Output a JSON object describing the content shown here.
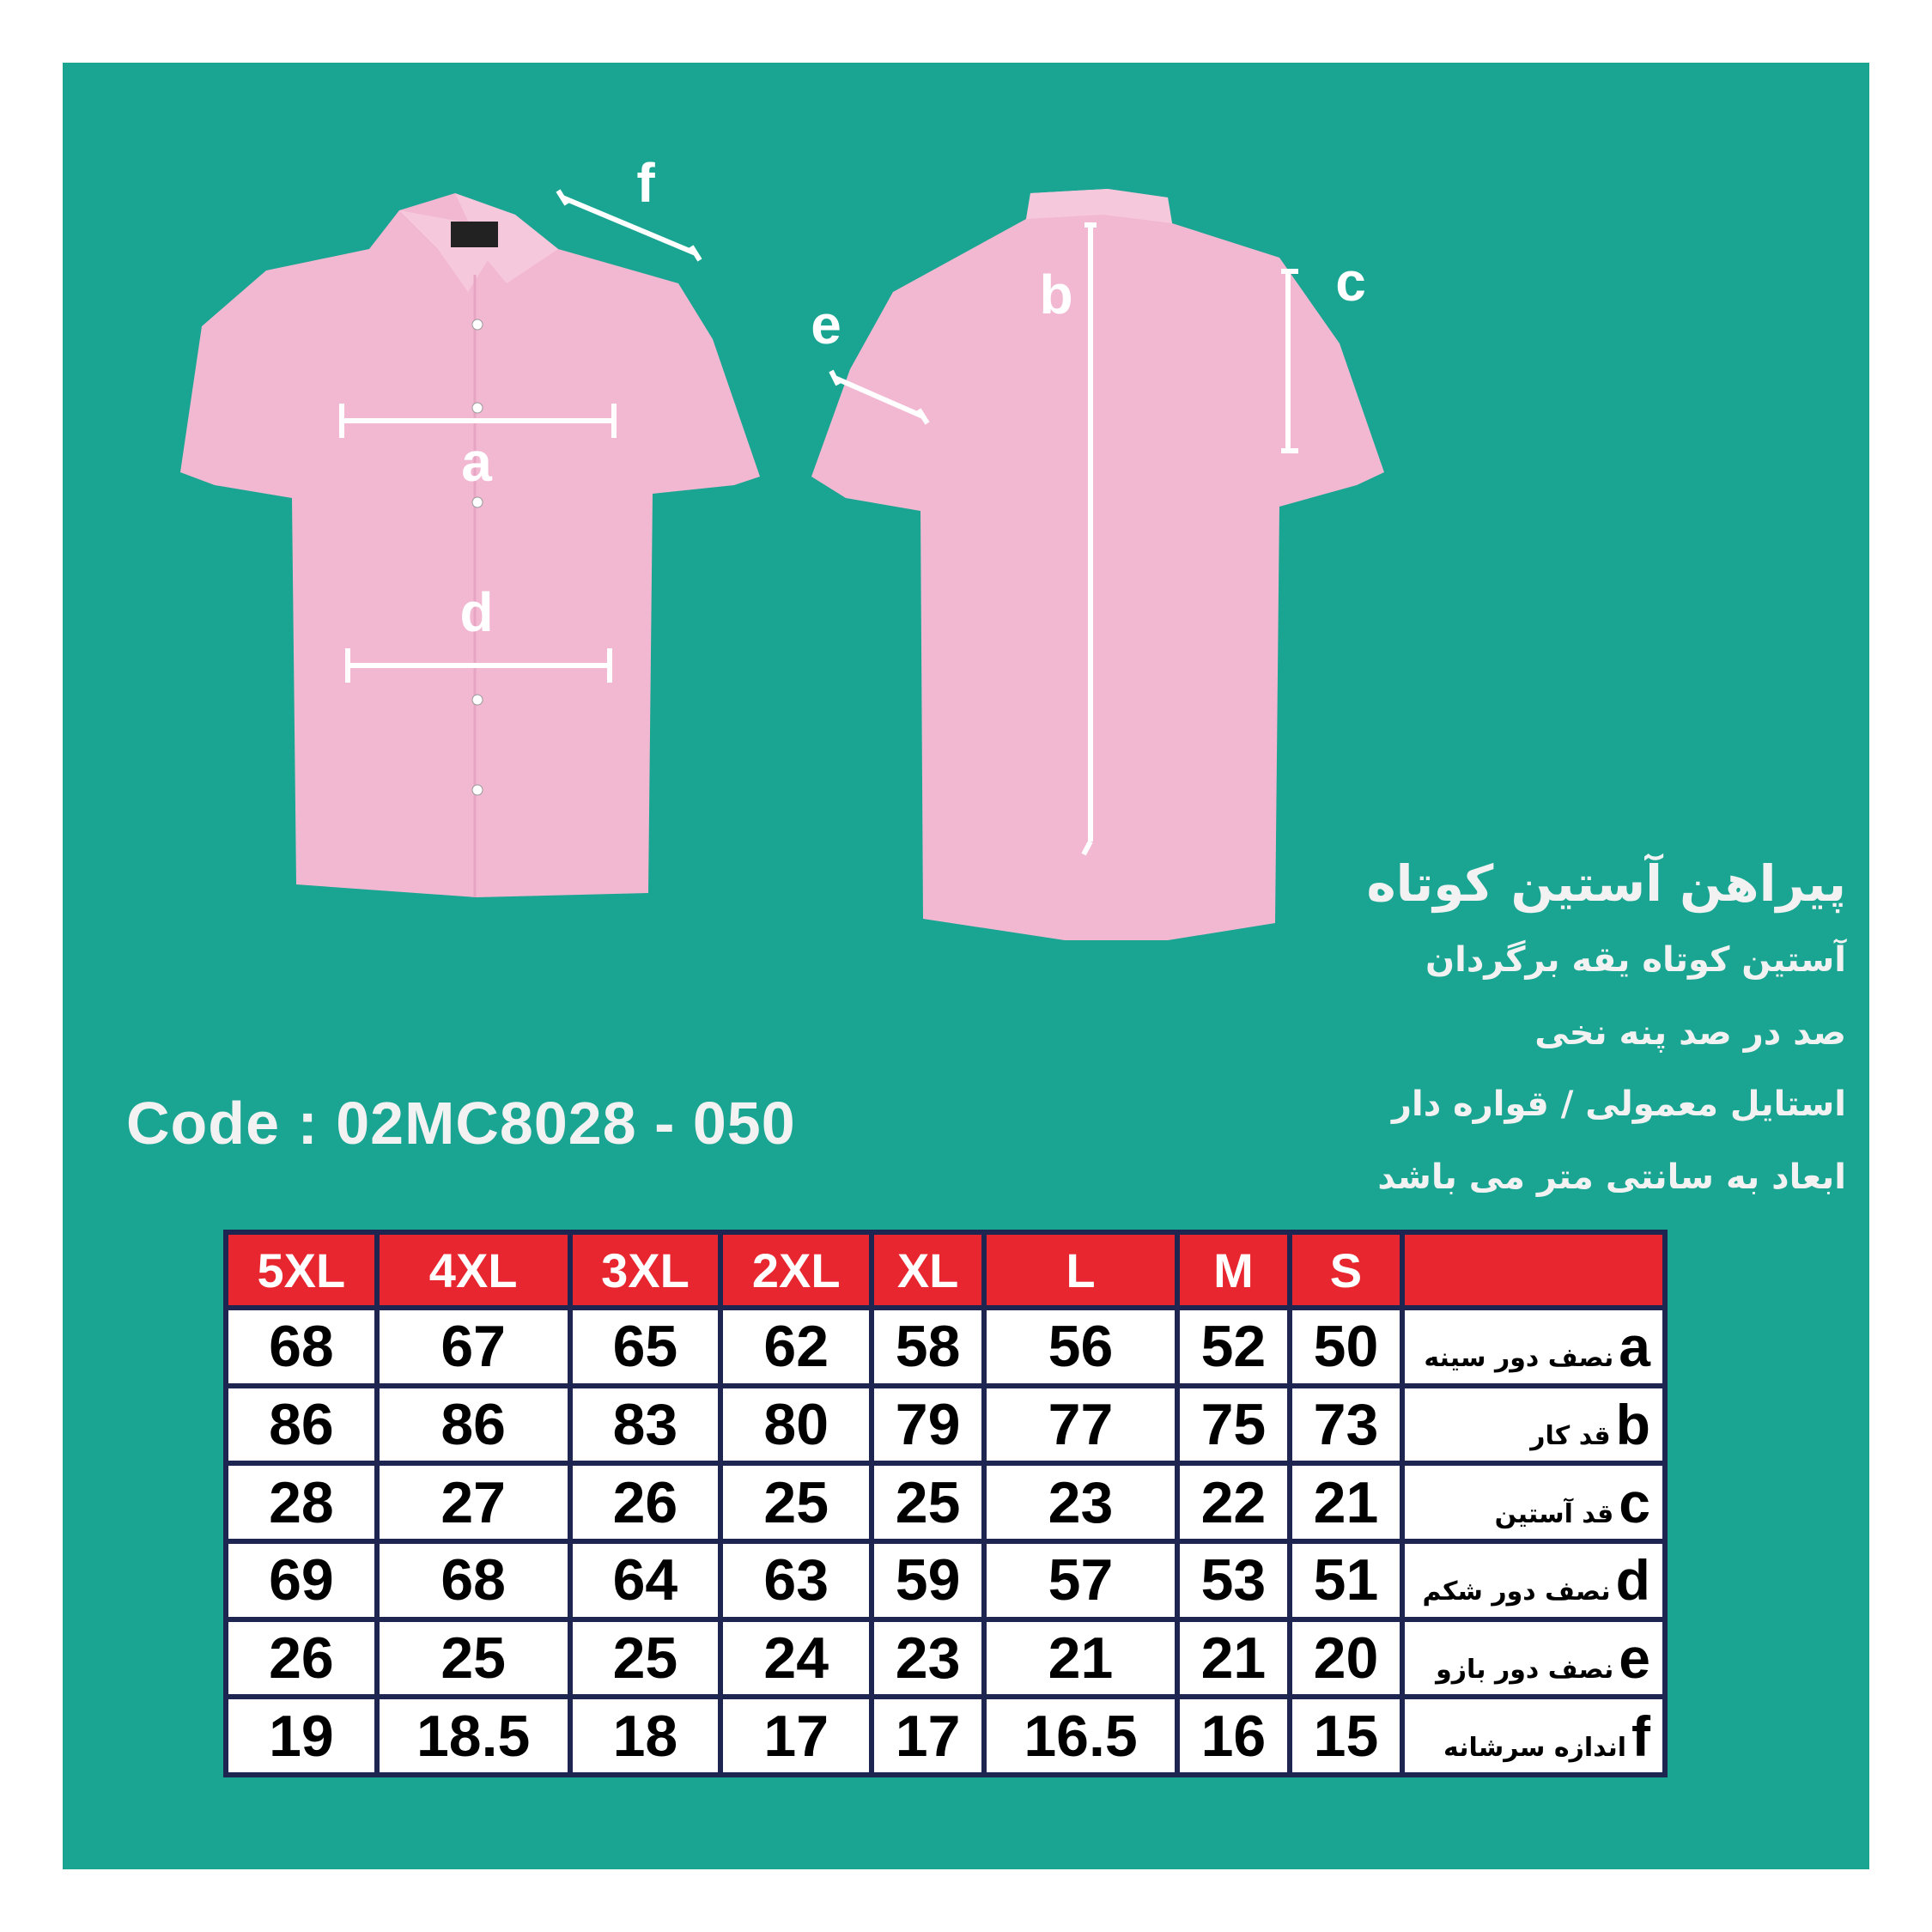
{
  "product": {
    "code": "Code : 02MC8028 - 050",
    "title": "پیراهن آستین کوتاه",
    "features": [
      "آستین کوتاه یقه برگردان",
      "صد در صد پنه نخی",
      "استایل معمولی / قواره دار",
      "ابعاد به سانتی متر می باشد"
    ]
  },
  "diagram": {
    "labels": {
      "a": "a",
      "b": "b",
      "c": "c",
      "d": "d",
      "e": "e",
      "f": "f"
    },
    "shirt_color": "#f2b8d2"
  },
  "colors": {
    "background": "#1aa592",
    "header": "#e8262f",
    "grid": "#1e2550"
  },
  "table": {
    "headers": [
      "5XL",
      "4XL",
      "3XL",
      "2XL",
      "XL",
      "L",
      "M",
      "S",
      ""
    ],
    "rows": [
      {
        "letter": "a",
        "label": "نصف دور سینه",
        "values": [
          "68",
          "67",
          "65",
          "62",
          "58",
          "56",
          "52",
          "50"
        ]
      },
      {
        "letter": "b",
        "label": "قد کار",
        "values": [
          "86",
          "86",
          "83",
          "80",
          "79",
          "77",
          "75",
          "73"
        ]
      },
      {
        "letter": "c",
        "label": "قد آستین",
        "values": [
          "28",
          "27",
          "26",
          "25",
          "25",
          "23",
          "22",
          "21"
        ]
      },
      {
        "letter": "d",
        "label": "نصف دور شکم",
        "values": [
          "69",
          "68",
          "64",
          "63",
          "59",
          "57",
          "53",
          "51"
        ]
      },
      {
        "letter": "e",
        "label": "نصف دور بازو",
        "values": [
          "26",
          "25",
          "25",
          "24",
          "23",
          "21",
          "21",
          "20"
        ]
      },
      {
        "letter": "f",
        "label": "اندازه سرشانه",
        "values": [
          "19",
          "18.5",
          "18",
          "17",
          "17",
          "16.5",
          "16",
          "15"
        ]
      }
    ]
  }
}
